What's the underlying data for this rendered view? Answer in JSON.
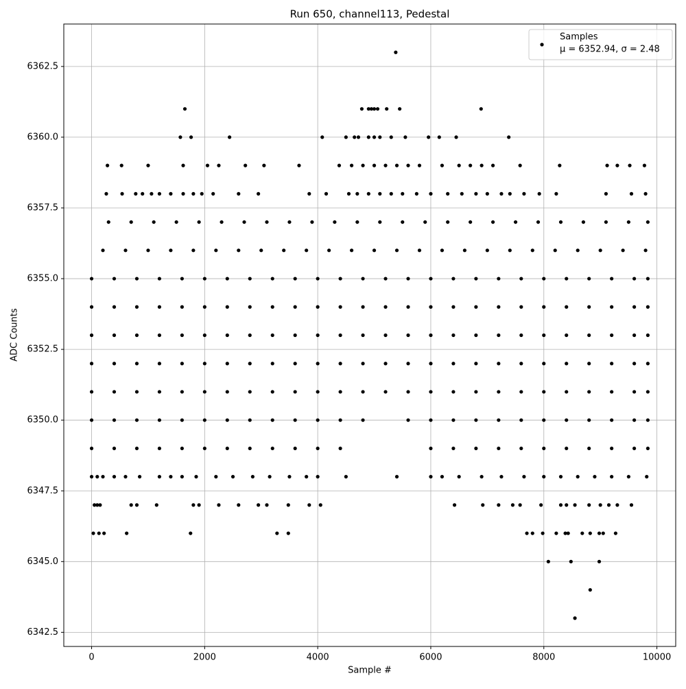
{
  "chart_data": {
    "type": "scatter",
    "title": "Run 650, channel113, Pedestal",
    "x_label": "Sample #",
    "y_label": "ADC Counts",
    "legend_note": "μ = 6352.94, σ = 2.48",
    "legend_position": "upper right",
    "grid": true,
    "xlim": [
      -492,
      10333
    ],
    "ylim": [
      6342.0,
      6364.0
    ],
    "xticks": [
      0,
      2000,
      4000,
      6000,
      8000,
      10000
    ],
    "yticks": [
      6342.5,
      {
        "value": 6345,
        "label": "6345.0"
      },
      6347.5,
      {
        "value": 6350,
        "label": "6350.0"
      },
      6352.5,
      {
        "value": 6355,
        "label": "6355.0"
      },
      6357.5,
      {
        "value": 6360,
        "label": "6360.0"
      },
      6362.5
    ],
    "series": [
      {
        "name": "Samples",
        "color": "#000000",
        "x": [
          5380,
          1650,
          4780,
          4900,
          4950,
          5000,
          5060,
          5220,
          5450,
          6890,
          1570,
          1760,
          2440,
          4080,
          4500,
          4650,
          4720,
          4900,
          5000,
          5100,
          5300,
          5550,
          5960,
          6150,
          6450,
          7380,
          280,
          530,
          1000,
          1620,
          2050,
          2250,
          2720,
          3050,
          3670,
          4380,
          4600,
          4800,
          5000,
          5200,
          5400,
          5600,
          5800,
          6200,
          6500,
          6700,
          6900,
          7100,
          7580,
          8280,
          9120,
          9300,
          9520,
          9780,
          260,
          540,
          780,
          900,
          1060,
          1200,
          1400,
          1620,
          1800,
          1950,
          2150,
          2600,
          2950,
          3850,
          4150,
          4550,
          4700,
          4900,
          5100,
          5300,
          5500,
          5750,
          6000,
          6300,
          6550,
          6800,
          7000,
          7250,
          7400,
          7650,
          7920,
          8220,
          9100,
          9550,
          9800,
          300,
          700,
          1100,
          1500,
          1900,
          2300,
          2700,
          3100,
          3500,
          3900,
          4300,
          4700,
          5100,
          5500,
          5900,
          6300,
          6700,
          7100,
          7500,
          7900,
          8300,
          8700,
          9100,
          9500,
          9840,
          200,
          600,
          1000,
          1400,
          1800,
          2200,
          2600,
          3000,
          3400,
          3800,
          4200,
          4600,
          5000,
          5400,
          5800,
          6200,
          6600,
          7000,
          7400,
          7800,
          8200,
          8600,
          9000,
          9400,
          9800,
          0,
          400,
          800,
          1200,
          1600,
          2000,
          2400,
          2800,
          3200,
          3600,
          4000,
          4400,
          4800,
          5200,
          5600,
          6000,
          6400,
          6800,
          7200,
          7600,
          8000,
          8400,
          8800,
          9200,
          9600,
          9840,
          0,
          400,
          800,
          1200,
          1600,
          2000,
          2400,
          2800,
          3200,
          3600,
          4000,
          4400,
          4800,
          5200,
          5600,
          6000,
          6400,
          6800,
          7200,
          7600,
          8000,
          8400,
          8800,
          9200,
          9600,
          9840,
          0,
          400,
          800,
          1200,
          1600,
          2000,
          2400,
          2800,
          3200,
          3600,
          4000,
          4400,
          4800,
          5200,
          5600,
          6000,
          6400,
          6800,
          7200,
          7600,
          8000,
          8400,
          8800,
          9200,
          9600,
          9840,
          0,
          400,
          800,
          1200,
          1600,
          2000,
          2400,
          2800,
          3200,
          3600,
          4000,
          4400,
          4800,
          5200,
          5600,
          6000,
          6400,
          6800,
          7200,
          7600,
          8000,
          8400,
          8800,
          9200,
          9600,
          9840,
          0,
          400,
          800,
          1200,
          1600,
          2000,
          2400,
          2800,
          3200,
          3600,
          4000,
          4400,
          4800,
          5200,
          5600,
          6000,
          6400,
          6800,
          7200,
          7600,
          8000,
          8400,
          8800,
          9200,
          9600,
          9840,
          0,
          400,
          800,
          1200,
          1600,
          2000,
          2400,
          2800,
          3200,
          3600,
          4000,
          4400,
          4800,
          5600,
          6000,
          6400,
          6800,
          7200,
          7600,
          8000,
          8400,
          8800,
          9200,
          9600,
          9840,
          0,
          400,
          800,
          1200,
          1600,
          2000,
          2400,
          2800,
          3200,
          3600,
          4000,
          4400,
          6000,
          6400,
          6800,
          7200,
          7600,
          8000,
          8400,
          8800,
          9200,
          9600,
          9840,
          0,
          100,
          200,
          400,
          600,
          850,
          1200,
          1400,
          1600,
          1850,
          2200,
          2500,
          2850,
          3150,
          3500,
          3800,
          4000,
          4500,
          5400,
          6000,
          6200,
          6500,
          6900,
          7250,
          7650,
          8000,
          8300,
          8600,
          8900,
          9200,
          9500,
          9820,
          50,
          100,
          150,
          700,
          800,
          1150,
          1800,
          1900,
          2250,
          2600,
          2950,
          3100,
          3480,
          3850,
          4050,
          6420,
          6920,
          7200,
          7450,
          7580,
          7950,
          8300,
          8400,
          8550,
          8800,
          9000,
          9150,
          9300,
          9550,
          30,
          130,
          220,
          620,
          1750,
          3280,
          3480,
          7700,
          7800,
          7980,
          8220,
          8380,
          8430,
          8680,
          8820,
          8980,
          9050,
          9270,
          8080,
          8480,
          8980,
          8820,
          8550
        ],
        "values": [
          6363,
          6361,
          6361,
          6361,
          6361,
          6361,
          6361,
          6361,
          6361,
          6361,
          6360,
          6360,
          6360,
          6360,
          6360,
          6360,
          6360,
          6360,
          6360,
          6360,
          6360,
          6360,
          6360,
          6360,
          6360,
          6360,
          6359,
          6359,
          6359,
          6359,
          6359,
          6359,
          6359,
          6359,
          6359,
          6359,
          6359,
          6359,
          6359,
          6359,
          6359,
          6359,
          6359,
          6359,
          6359,
          6359,
          6359,
          6359,
          6359,
          6359,
          6359,
          6359,
          6359,
          6359,
          6358,
          6358,
          6358,
          6358,
          6358,
          6358,
          6358,
          6358,
          6358,
          6358,
          6358,
          6358,
          6358,
          6358,
          6358,
          6358,
          6358,
          6358,
          6358,
          6358,
          6358,
          6358,
          6358,
          6358,
          6358,
          6358,
          6358,
          6358,
          6358,
          6358,
          6358,
          6358,
          6358,
          6358,
          6358,
          6357,
          6357,
          6357,
          6357,
          6357,
          6357,
          6357,
          6357,
          6357,
          6357,
          6357,
          6357,
          6357,
          6357,
          6357,
          6357,
          6357,
          6357,
          6357,
          6357,
          6357,
          6357,
          6357,
          6357,
          6357,
          6356,
          6356,
          6356,
          6356,
          6356,
          6356,
          6356,
          6356,
          6356,
          6356,
          6356,
          6356,
          6356,
          6356,
          6356,
          6356,
          6356,
          6356,
          6356,
          6356,
          6356,
          6356,
          6356,
          6356,
          6356,
          6355,
          6355,
          6355,
          6355,
          6355,
          6355,
          6355,
          6355,
          6355,
          6355,
          6355,
          6355,
          6355,
          6355,
          6355,
          6355,
          6355,
          6355,
          6355,
          6355,
          6355,
          6355,
          6355,
          6355,
          6355,
          6355,
          6354,
          6354,
          6354,
          6354,
          6354,
          6354,
          6354,
          6354,
          6354,
          6354,
          6354,
          6354,
          6354,
          6354,
          6354,
          6354,
          6354,
          6354,
          6354,
          6354,
          6354,
          6354,
          6354,
          6354,
          6354,
          6354,
          6353,
          6353,
          6353,
          6353,
          6353,
          6353,
          6353,
          6353,
          6353,
          6353,
          6353,
          6353,
          6353,
          6353,
          6353,
          6353,
          6353,
          6353,
          6353,
          6353,
          6353,
          6353,
          6353,
          6353,
          6353,
          6353,
          6352,
          6352,
          6352,
          6352,
          6352,
          6352,
          6352,
          6352,
          6352,
          6352,
          6352,
          6352,
          6352,
          6352,
          6352,
          6352,
          6352,
          6352,
          6352,
          6352,
          6352,
          6352,
          6352,
          6352,
          6352,
          6352,
          6351,
          6351,
          6351,
          6351,
          6351,
          6351,
          6351,
          6351,
          6351,
          6351,
          6351,
          6351,
          6351,
          6351,
          6351,
          6351,
          6351,
          6351,
          6351,
          6351,
          6351,
          6351,
          6351,
          6351,
          6351,
          6351,
          6350,
          6350,
          6350,
          6350,
          6350,
          6350,
          6350,
          6350,
          6350,
          6350,
          6350,
          6350,
          6350,
          6350,
          6350,
          6350,
          6350,
          6350,
          6350,
          6350,
          6350,
          6350,
          6350,
          6350,
          6350,
          6349,
          6349,
          6349,
          6349,
          6349,
          6349,
          6349,
          6349,
          6349,
          6349,
          6349,
          6349,
          6349,
          6349,
          6349,
          6349,
          6349,
          6349,
          6349,
          6349,
          6349,
          6349,
          6349,
          6348,
          6348,
          6348,
          6348,
          6348,
          6348,
          6348,
          6348,
          6348,
          6348,
          6348,
          6348,
          6348,
          6348,
          6348,
          6348,
          6348,
          6348,
          6348,
          6348,
          6348,
          6348,
          6348,
          6348,
          6348,
          6348,
          6348,
          6348,
          6348,
          6348,
          6348,
          6348,
          6347,
          6347,
          6347,
          6347,
          6347,
          6347,
          6347,
          6347,
          6347,
          6347,
          6347,
          6347,
          6347,
          6347,
          6347,
          6347,
          6347,
          6347,
          6347,
          6347,
          6347,
          6347,
          6347,
          6347,
          6347,
          6347,
          6347,
          6347,
          6347,
          6346,
          6346,
          6346,
          6346,
          6346,
          6346,
          6346,
          6346,
          6346,
          6346,
          6346,
          6346,
          6346,
          6346,
          6346,
          6346,
          6346,
          6346,
          6345,
          6345,
          6345,
          6344,
          6343
        ]
      }
    ]
  }
}
